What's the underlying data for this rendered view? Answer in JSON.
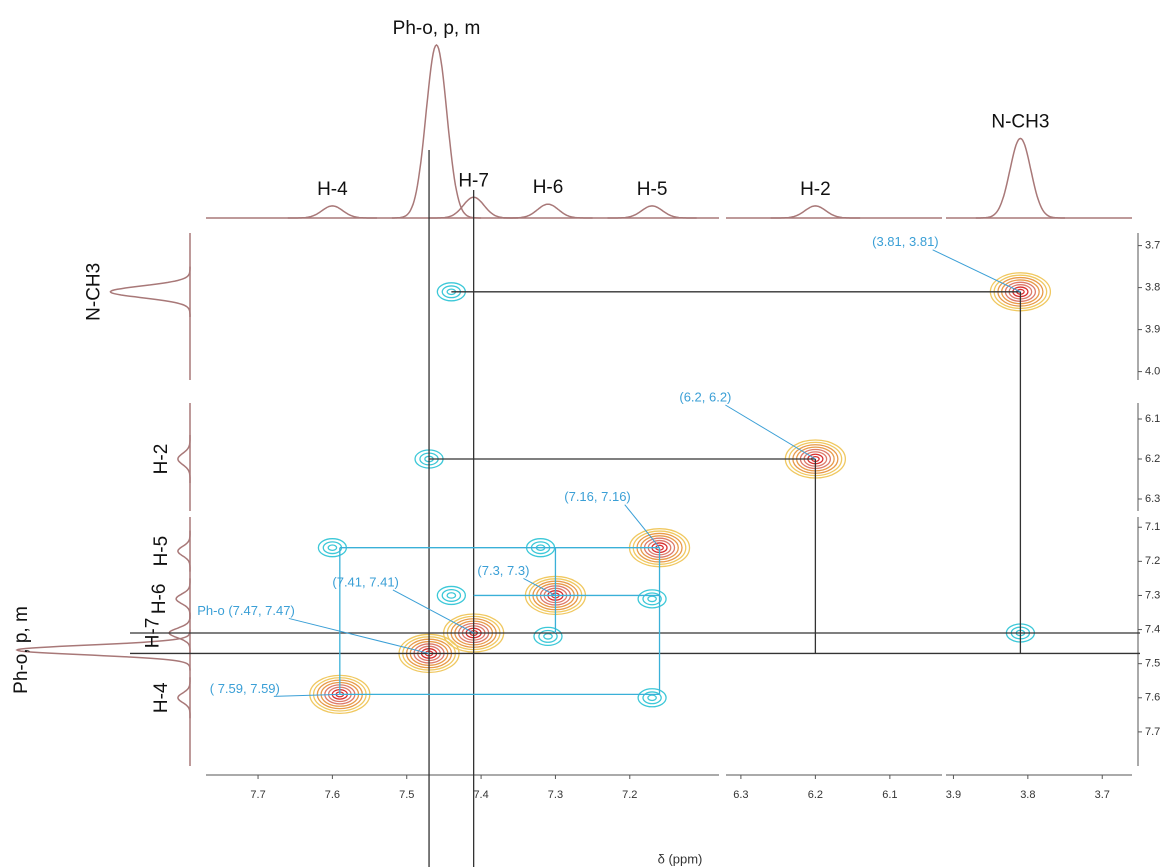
{
  "chart_data": {
    "type": "nmr2d",
    "x_label": "δ (ppm)",
    "x_segments": [
      {
        "xlim": [
          7.77,
          7.08
        ],
        "xticks": [
          7.7,
          7.6,
          7.5,
          7.4,
          7.3,
          7.2
        ]
      },
      {
        "xlim": [
          6.32,
          6.03
        ],
        "xticks": [
          6.3,
          6.2,
          6.1
        ]
      },
      {
        "xlim": [
          3.91,
          3.66
        ],
        "xticks": [
          3.9,
          3.8,
          3.7
        ]
      }
    ],
    "y_segments": [
      {
        "ylim": [
          3.67,
          4.02
        ],
        "yticks": [
          3.7,
          3.8,
          3.9,
          {
            "value": 4,
            "label": "4.0"
          }
        ]
      },
      {
        "ylim": [
          6.06,
          6.33
        ],
        "yticks": [
          6.1,
          6.2,
          6.3
        ]
      },
      {
        "ylim": [
          7.07,
          7.8
        ],
        "yticks": [
          7.1,
          7.2,
          7.3,
          7.4,
          7.5,
          7.6,
          7.7
        ]
      }
    ],
    "projection_color": "#a87878",
    "signals": [
      {
        "name": "H-4",
        "ppm": 7.6,
        "height": 7
      },
      {
        "name": "Ph-o, p, m",
        "ppm": 7.46,
        "height": 100
      },
      {
        "name": "H-7",
        "ppm": 7.41,
        "height": 12
      },
      {
        "name": "H-6",
        "ppm": 7.31,
        "height": 8
      },
      {
        "name": "H-5",
        "ppm": 7.17,
        "height": 7
      },
      {
        "name": "H-2",
        "ppm": 6.2,
        "height": 7
      },
      {
        "name": "N-CH3",
        "ppm": 3.81,
        "height": 46
      }
    ],
    "diagonal_colors": [
      "#f0c860",
      "#e89a4a",
      "#dd7a6a",
      "#d83030"
    ],
    "cross_color": "#3cc8d8",
    "diagonal_peaks": [
      {
        "x": 3.81,
        "y": 3.81
      },
      {
        "x": 6.2,
        "y": 6.2
      },
      {
        "x": 7.16,
        "y": 7.16
      },
      {
        "x": 7.3,
        "y": 7.3
      },
      {
        "x": 7.41,
        "y": 7.41
      },
      {
        "x": 7.47,
        "y": 7.47
      },
      {
        "x": 7.59,
        "y": 7.59
      }
    ],
    "cross_peaks": [
      {
        "x": 7.44,
        "y": 3.81
      },
      {
        "x": 3.81,
        "y": 7.41
      },
      {
        "x": 7.47,
        "y": 6.2
      },
      {
        "x": 7.6,
        "y": 7.16
      },
      {
        "x": 7.17,
        "y": 7.6
      },
      {
        "x": 7.17,
        "y": 7.31
      },
      {
        "x": 7.32,
        "y": 7.16
      },
      {
        "x": 7.44,
        "y": 7.3
      },
      {
        "x": 7.31,
        "y": 7.42
      }
    ],
    "guide_color": "#333333",
    "guides_x": [
      7.47,
      7.41
    ],
    "guides_y": [
      7.41,
      7.47
    ],
    "links": [
      {
        "x": [
          7.44,
          3.81
        ],
        "y": [
          3.81,
          3.81
        ],
        "color": "#333333"
      },
      {
        "x": [
          3.81,
          3.81
        ],
        "y": [
          3.81,
          7.47
        ],
        "color": "#333333"
      },
      {
        "x": [
          7.47,
          6.2
        ],
        "y": [
          6.2,
          6.2
        ],
        "color": "#333333"
      },
      {
        "x": [
          6.2,
          6.2
        ],
        "y": [
          6.2,
          7.47
        ],
        "color": "#333333"
      },
      {
        "x": [
          7.59,
          7.16
        ],
        "y": [
          7.16,
          7.16
        ],
        "color": "#3ab0d8"
      },
      {
        "x": [
          7.59,
          7.59
        ],
        "y": [
          7.16,
          7.59
        ],
        "color": "#3ab0d8"
      },
      {
        "x": [
          7.59,
          7.16
        ],
        "y": [
          7.59,
          7.59
        ],
        "color": "#3ab0d8"
      },
      {
        "x": [
          7.16,
          7.16
        ],
        "y": [
          7.16,
          7.59
        ],
        "color": "#3ab0d8"
      },
      {
        "x": [
          7.41,
          7.16
        ],
        "y": [
          7.3,
          7.3
        ],
        "color": "#3ab0d8"
      },
      {
        "x": [
          7.3,
          7.3
        ],
        "y": [
          7.16,
          7.41
        ],
        "color": "#3ab0d8"
      }
    ],
    "annotations": [
      {
        "text": "(3.81, 3.81)",
        "x": 3.81,
        "y": 3.81
      },
      {
        "text": "(6.2, 6.2)",
        "x": 6.2,
        "y": 6.2
      },
      {
        "text": "(7.16, 7.16)",
        "x": 7.16,
        "y": 7.16
      },
      {
        "text": "(7.3, 7.3)",
        "x": 7.3,
        "y": 7.3
      },
      {
        "text": "(7.41, 7.41)",
        "x": 7.41,
        "y": 7.41
      },
      {
        "text": "Ph-o (7.47, 7.47)",
        "x": 7.47,
        "y": 7.47
      },
      {
        "text": "(  7.59, 7.59)",
        "x": 7.59,
        "y": 7.59
      }
    ]
  }
}
